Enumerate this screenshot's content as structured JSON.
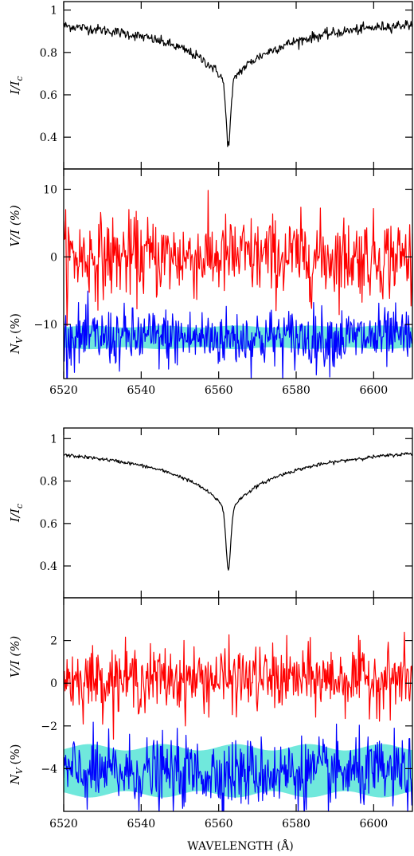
{
  "chart_data": [
    {
      "type": "line",
      "x": {
        "start": 6520,
        "end": 6610,
        "ticks": [
          6520,
          6540,
          6560,
          6580,
          6600
        ],
        "xlim": [
          6520,
          6610
        ]
      },
      "panels": [
        {
          "ylabel": "I/I",
          "ylabel_sub": "c",
          "ylim": [
            0.25,
            1.04
          ],
          "yticks": [
            0.4,
            0.6,
            0.8,
            1
          ],
          "series": [
            {
              "color": "#000000",
              "line": {
                "continuum": 0.985,
                "depth": 0.62,
                "core_width": 0.6,
                "wing_width": 14,
                "wing_weight": 0.55,
                "noise": 0.012
              }
            }
          ]
        },
        {
          "ylabel": "V/I (%)",
          "ylabel2": "N",
          "ylabel2_sub": "V",
          "ylabel2_tail": "(%)",
          "ylim": [
            -18,
            13
          ],
          "yticks": [
            -10,
            0,
            10
          ],
          "series": [
            {
              "color": "#ff0000",
              "level": 0,
              "noise": 3.0
            },
            {
              "color": "#0000ff",
              "level": -12,
              "noise": 2.2
            }
          ],
          "band": {
            "color": "#40e0d0",
            "low": -13.5,
            "high": -10.3
          }
        }
      ]
    },
    {
      "type": "line",
      "x": {
        "start": 6520,
        "end": 6610,
        "ticks": [
          6520,
          6540,
          6560,
          6580,
          6600
        ],
        "xlim": [
          6520,
          6610
        ],
        "label": "WAVELENGTH (Å)"
      },
      "panels": [
        {
          "ylabel": "I/I",
          "ylabel_sub": "c",
          "ylim": [
            0.25,
            1.05
          ],
          "yticks": [
            0.4,
            0.6,
            0.8,
            1
          ],
          "series": [
            {
              "color": "#000000",
              "line": {
                "continuum": 0.98,
                "depth": 0.6,
                "core_width": 0.6,
                "wing_width": 14,
                "wing_weight": 0.55,
                "noise": 0.004
              }
            }
          ]
        },
        {
          "ylabel": "V/I (%)",
          "ylabel2": "N",
          "ylabel2_sub": "V",
          "ylabel2_tail": "(%)",
          "ylim": [
            -6,
            4
          ],
          "yticks": [
            -4,
            -2,
            0,
            2
          ],
          "series": [
            {
              "color": "#ff0000",
              "level": 0.2,
              "noise": 0.75
            },
            {
              "color": "#0000ff",
              "level": -4.2,
              "noise": 0.8
            }
          ],
          "band": {
            "color": "#40e0d0",
            "low": -5.2,
            "high": -3.0
          }
        }
      ]
    }
  ]
}
